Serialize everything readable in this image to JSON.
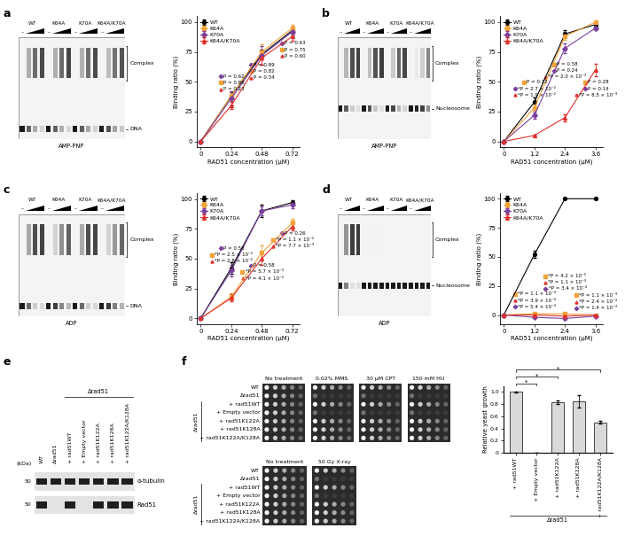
{
  "panel_labels": [
    "a",
    "b",
    "c",
    "d",
    "e",
    "f"
  ],
  "chart_data": [
    {
      "type": "line",
      "xlabel": "RAD51 concentration (µM)",
      "ylabel": "Binding ratio (%)",
      "x": [
        0,
        0.24,
        0.48,
        0.72
      ],
      "xlim": [
        -0.03,
        0.78
      ],
      "xticks": [
        0,
        0.24,
        0.48,
        0.72
      ],
      "ylim": [
        -5,
        105
      ],
      "yticks": [
        0,
        25,
        50,
        75,
        100
      ],
      "legend": "upper left",
      "series": [
        {
          "name": "WT",
          "color": "#000000",
          "marker": "circle",
          "values": [
            0,
            38,
            73,
            93
          ],
          "errors": [
            0,
            3,
            4,
            3
          ]
        },
        {
          "name": "K64A",
          "color": "#f2a33a",
          "marker": "square",
          "values": [
            0,
            38,
            75,
            95
          ],
          "errors": [
            0,
            4,
            6,
            3
          ]
        },
        {
          "name": "K70A",
          "color": "#7b3f9e",
          "marker": "diamond",
          "values": [
            0,
            36,
            72,
            92
          ],
          "errors": [
            0,
            6,
            8,
            3
          ]
        },
        {
          "name": "K64A/K70A",
          "color": "#e0312c",
          "marker": "triangle",
          "values": [
            0,
            30,
            70,
            88
          ],
          "errors": [
            0,
            3,
            6,
            4
          ]
        }
      ],
      "annotations": [
        {
          "x": 0.24,
          "series": "K70A",
          "text": "P = 0.62"
        },
        {
          "x": 0.24,
          "series": "K64A",
          "text": "P = 0.88"
        },
        {
          "x": 0.24,
          "series": "K64A/K70A",
          "text": "P = 0.23"
        },
        {
          "x": 0.48,
          "series": "K70A",
          "text": "P = 0.89"
        },
        {
          "x": 0.48,
          "series": "K64A",
          "text": "P = 0.82"
        },
        {
          "x": 0.48,
          "series": "K64A/K70A",
          "text": "P = 0.34"
        },
        {
          "x": 0.72,
          "series": "K70A",
          "text": "P = 0.63"
        },
        {
          "x": 0.72,
          "series": "K64A",
          "text": "P = 0.75"
        },
        {
          "x": 0.72,
          "series": "K64A/K70A",
          "text": "P = 0.60"
        }
      ]
    },
    {
      "type": "line",
      "xlabel": "RAD51 concentration (µM)",
      "ylabel": "Binding ratio (%)",
      "x": [
        0,
        1.2,
        2.4,
        3.6
      ],
      "xlim": [
        -0.15,
        3.9
      ],
      "xticks": [
        0,
        1.2,
        2.4,
        3.6
      ],
      "ylim": [
        -5,
        105
      ],
      "yticks": [
        0,
        25,
        50,
        75,
        100
      ],
      "legend": "upper left",
      "series": [
        {
          "name": "WT",
          "color": "#000000",
          "marker": "circle",
          "values": [
            0,
            33,
            90,
            98
          ],
          "errors": [
            0,
            4,
            3,
            2
          ]
        },
        {
          "name": "K64A",
          "color": "#f2a33a",
          "marker": "square",
          "values": [
            0,
            28,
            88,
            100
          ],
          "errors": [
            0,
            3,
            3,
            0
          ]
        },
        {
          "name": "K70A",
          "color": "#7b3f9e",
          "marker": "diamond",
          "values": [
            0,
            22,
            78,
            95
          ],
          "errors": [
            0,
            3,
            4,
            2
          ]
        },
        {
          "name": "K64A/K70A",
          "color": "#e0312c",
          "marker": "triangle",
          "values": [
            0,
            5,
            20,
            60
          ],
          "errors": [
            0,
            1,
            3,
            5
          ]
        }
      ],
      "annotations": [
        {
          "x": 1.2,
          "series": "K64A",
          "text": "P = 0.12"
        },
        {
          "x": 1.2,
          "series": "K70A",
          "text": "*P = 2.7 × 10⁻²"
        },
        {
          "x": 1.2,
          "series": "K64A/K70A",
          "text": "*P = 1.9 × 10⁻²"
        },
        {
          "x": 2.4,
          "series": "K64A",
          "text": "P = 0.58"
        },
        {
          "x": 2.4,
          "series": "K70A",
          "text": "P = 0.24"
        },
        {
          "x": 2.4,
          "series": "K64A/K70A",
          "text": "*P = 2.0 × 10⁻³"
        },
        {
          "x": 3.6,
          "series": "K64A",
          "text": "P = 0.28"
        },
        {
          "x": 3.6,
          "series": "K70A",
          "text": "P = 0.14"
        },
        {
          "x": 3.6,
          "series": "K64A/K70A",
          "text": "*P = 8.5 × 10⁻³"
        }
      ]
    },
    {
      "type": "line",
      "xlabel": "RAD51 concentration (µM)",
      "ylabel": "Binding ratio (%)",
      "x": [
        0,
        0.24,
        0.48,
        0.72
      ],
      "xlim": [
        -0.03,
        0.78
      ],
      "xticks": [
        0,
        0.24,
        0.48,
        0.72
      ],
      "ylim": [
        -5,
        105
      ],
      "yticks": [
        0,
        25,
        50,
        75,
        100
      ],
      "legend": "upper left",
      "series": [
        {
          "name": "WT",
          "color": "#000000",
          "marker": "circle",
          "values": [
            0,
            42,
            90,
            97
          ],
          "errors": [
            0,
            5,
            5,
            2
          ]
        },
        {
          "name": "K64A",
          "color": "#f2a33a",
          "marker": "square",
          "values": [
            0,
            18,
            55,
            80
          ],
          "errors": [
            0,
            3,
            6,
            3
          ]
        },
        {
          "name": "K70A",
          "color": "#7b3f9e",
          "marker": "diamond",
          "values": [
            0,
            40,
            90,
            95
          ],
          "errors": [
            0,
            5,
            4,
            3
          ]
        },
        {
          "name": "K64A/K70A",
          "color": "#e0312c",
          "marker": "triangle",
          "values": [
            0,
            17,
            50,
            77
          ],
          "errors": [
            0,
            3,
            5,
            3
          ]
        }
      ],
      "annotations": [
        {
          "x": 0.24,
          "series": "K70A",
          "text": "P = 0.58"
        },
        {
          "x": 0.24,
          "series": "K64A",
          "text": "*P = 2.5 × 10⁻²"
        },
        {
          "x": 0.24,
          "series": "K64A/K70A",
          "text": "*P = 2.8 × 10⁻²"
        },
        {
          "x": 0.48,
          "series": "K70A",
          "text": "P = 0.58"
        },
        {
          "x": 0.48,
          "series": "K64A",
          "text": "*P = 5.7 × 10⁻³"
        },
        {
          "x": 0.48,
          "series": "K64A/K70A",
          "text": "*P = 4.1 × 10⁻²"
        },
        {
          "x": 0.72,
          "series": "K70A",
          "text": "P = 0.26"
        },
        {
          "x": 0.72,
          "series": "K64A",
          "text": "*P = 1.1 × 10⁻²"
        },
        {
          "x": 0.72,
          "series": "K64A/K70A",
          "text": "*P = 7.7 × 10⁻³"
        }
      ]
    },
    {
      "type": "line",
      "xlabel": "RAD51 concentration (µM)",
      "ylabel": "Binding ratio (%)",
      "x": [
        0,
        1.2,
        2.4,
        3.6
      ],
      "xlim": [
        -0.15,
        3.9
      ],
      "xticks": [
        0,
        1.2,
        2.4,
        3.6
      ],
      "ylim": [
        -8,
        105
      ],
      "yticks": [
        0,
        25,
        50,
        75,
        100
      ],
      "legend": "upper left",
      "series": [
        {
          "name": "WT",
          "color": "#000000",
          "marker": "circle",
          "values": [
            0,
            52,
            100,
            100
          ],
          "errors": [
            0,
            3,
            0,
            0
          ]
        },
        {
          "name": "K64A",
          "color": "#f2a33a",
          "marker": "square",
          "values": [
            0,
            1,
            1,
            0
          ],
          "errors": [
            0,
            1,
            1,
            0
          ]
        },
        {
          "name": "K70A",
          "color": "#7b3f9e",
          "marker": "diamond",
          "values": [
            0,
            -2,
            -3,
            -1
          ],
          "errors": [
            0,
            1,
            1,
            1
          ]
        },
        {
          "name": "K64A/K70A",
          "color": "#e0312c",
          "marker": "triangle",
          "values": [
            0,
            0,
            -1,
            0
          ],
          "errors": [
            0,
            1,
            1,
            0
          ]
        }
      ],
      "annotations": [
        {
          "x": 1.2,
          "series": "K64A",
          "text": "*P = 1.1 × 10⁻⁴"
        },
        {
          "x": 1.2,
          "series": "K64A/K70A",
          "text": "*P = 3.9 × 10⁻⁴"
        },
        {
          "x": 1.2,
          "series": "K70A",
          "text": "*P = 5.4 × 10⁻⁴"
        },
        {
          "x": 2.4,
          "series": "K64A",
          "text": "*P = 4.2 × 10⁻⁵"
        },
        {
          "x": 2.4,
          "series": "K64A/K70A",
          "text": "*P = 1.1 × 10⁻³"
        },
        {
          "x": 2.4,
          "series": "K70A",
          "text": "*P = 3.4 × 10⁻⁴"
        },
        {
          "x": 3.6,
          "series": "K64A",
          "text": "*P = 1.1 × 10⁻³"
        },
        {
          "x": 3.6,
          "series": "K64A/K70A",
          "text": "*P = 2.4 × 10⁻³"
        },
        {
          "x": 3.6,
          "series": "K70A",
          "text": "*P = 1.4 × 10⁻³"
        }
      ]
    },
    {
      "type": "bar",
      "ylabel": "Relative yeast growth",
      "categories": [
        "+ rad51WT",
        "+ Empty vector",
        "+ rad51K122A",
        "+ rad51K128A",
        "+ rad51K122A/K128A"
      ],
      "values": [
        1.0,
        0.0,
        0.83,
        0.85,
        0.5
      ],
      "errors": [
        0.01,
        0.0,
        0.03,
        0.1,
        0.02
      ],
      "color": "#d9d9d9",
      "ylim": [
        0,
        1.1
      ],
      "yticks": [
        0,
        0.2,
        0.4,
        0.6,
        0.8,
        {
          "value": 1.0,
          "label": "1.0"
        }
      ],
      "group_label": "Δrad51",
      "comparisons": [
        {
          "between": [
            "+ rad51WT",
            "+ Empty vector"
          ],
          "text": "*"
        },
        {
          "between": [
            "+ rad51WT",
            "+ rad51K122A"
          ],
          "text": "*"
        },
        {
          "between": [
            "+ rad51WT",
            "+ rad51K122A/K128A"
          ],
          "text": "*"
        }
      ]
    }
  ],
  "gels": [
    {
      "groups": [
        "WT",
        "K64A",
        "K70A",
        "K64A/K70A"
      ],
      "lane_mark": "–",
      "complex_label": "Complex",
      "free_label": "DNA",
      "nucleotide": "AMP-PNP"
    },
    {
      "groups": [
        "WT",
        "K64A",
        "K70A",
        "K64A/K70A"
      ],
      "lane_mark": "–",
      "complex_label": "Complex",
      "free_label": "Nucleosome",
      "nucleotide": "AMP-PNP"
    },
    {
      "groups": [
        "WT",
        "K64A",
        "K70A",
        "K64A/K70A"
      ],
      "lane_mark": "–",
      "complex_label": "Complex",
      "free_label": "DNA",
      "nucleotide": "ADP"
    },
    {
      "groups": [
        "WT",
        "K64A",
        "K70A",
        "K64A/K70A"
      ],
      "lane_mark": "–",
      "complex_label": "Complex",
      "free_label": "Nucleosome",
      "nucleotide": "ADP"
    }
  ],
  "blot": {
    "lanes": [
      "WT",
      "Δrad51",
      "+ rad51WT",
      "+ Empty vector",
      "+ rad51K122A",
      "+ rad51K128A",
      "+ rad51K122A/K128A"
    ],
    "group_label": "Δrad51",
    "size_unit": "(kDa)",
    "proteins": [
      {
        "name": "α-tubulin",
        "size": 50,
        "detected": [
          true,
          true,
          true,
          true,
          true,
          true,
          true
        ]
      },
      {
        "name": "Rad51",
        "size": 50,
        "detected": [
          true,
          false,
          true,
          false,
          true,
          true,
          true
        ]
      }
    ]
  },
  "spot_assays": {
    "strains": [
      "WT",
      "Δrad51",
      "+ rad51WT",
      "+ Empty vector",
      "+ rad51K122A",
      "+ rad51K128A",
      "+ rad51K122A/K128A"
    ],
    "group_label": "Δrad51",
    "panels": [
      {
        "conditions": [
          "No treatment",
          "0.02% MMS",
          "30 µM CPT",
          "150 mM HU"
        ],
        "growth": [
          [
            true,
            true,
            true,
            true,
            true,
            true,
            true
          ],
          [
            true,
            false,
            true,
            false,
            true,
            true,
            true
          ],
          [
            true,
            false,
            true,
            false,
            true,
            true,
            true
          ],
          [
            true,
            false,
            true,
            false,
            true,
            true,
            true
          ]
        ]
      },
      {
        "conditions": [
          "No treatment",
          "50 Gy X-ray"
        ],
        "growth": [
          [
            true,
            true,
            true,
            true,
            true,
            true,
            true
          ],
          [
            true,
            false,
            true,
            false,
            true,
            true,
            true
          ]
        ]
      }
    ]
  }
}
